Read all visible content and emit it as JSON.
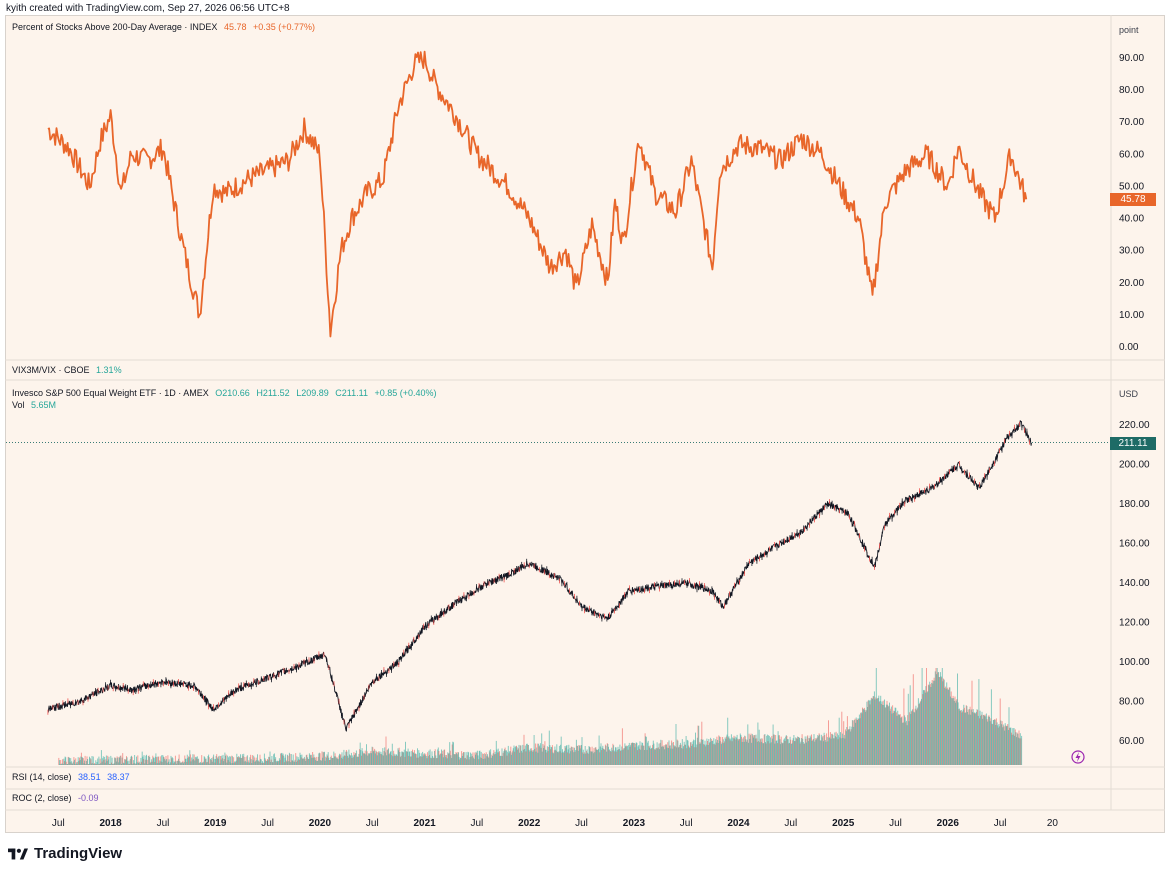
{
  "credit": "kyith created with TradingView.com, Sep 27, 2026 06:56 UTC+8",
  "footer": {
    "brand": "TradingView"
  },
  "colors": {
    "line_orange": "#e8662a",
    "price_bar": "#131722",
    "vol_up": "#26a69a",
    "vol_down": "#ef5350",
    "badge_green": "#1e6b66",
    "bg": "#fdf4ec"
  },
  "panes": {
    "breadth": {
      "title": "Percent of Stocks Above 200-Day Average · INDEX",
      "last": "45.78",
      "change": "+0.35 (+0.77%)",
      "unit": "point",
      "badge": "45.78",
      "ticks": [
        "90.00",
        "80.00",
        "70.00",
        "60.00",
        "50.00",
        "40.00",
        "30.00",
        "20.00",
        "10.00",
        "0.00"
      ]
    },
    "vix": {
      "title": "VIX3M/VIX · CBOE",
      "value": "1.31%"
    },
    "price": {
      "title": "Invesco S&P 500 Equal Weight ETF · 1D · AMEX",
      "open": "O210.66",
      "high": "H211.52",
      "low": "L209.89",
      "close": "C211.11",
      "change": "+0.85 (+0.40%)",
      "vol_label": "Vol",
      "vol_value": "5.65M",
      "unit": "USD",
      "badge": "211.11",
      "ticks": [
        "220.00",
        "200.00",
        "180.00",
        "160.00",
        "140.00",
        "120.00",
        "100.00",
        "80.00",
        "60.00"
      ]
    },
    "rsi": {
      "title": "RSI (14, close)",
      "v1": "38.51",
      "v2": "38.37"
    },
    "roc": {
      "title": "ROC (2, close)",
      "v1": "-0.09"
    }
  },
  "x_axis": [
    "Jul",
    "2018",
    "Jul",
    "2019",
    "Jul",
    "2020",
    "Jul",
    "2021",
    "Jul",
    "2022",
    "Jul",
    "2023",
    "Jul",
    "2024",
    "Jul",
    "2025",
    "Jul",
    "2026",
    "Jul",
    "20"
  ],
  "chart_data": [
    {
      "type": "line",
      "title": "Percent of Stocks Above 200-Day Average · INDEX",
      "ylim": [
        0,
        95
      ],
      "x": [
        2017.4,
        2017.6,
        2017.8,
        2017.9,
        2018.0,
        2018.1,
        2018.2,
        2018.35,
        2018.5,
        2018.7,
        2018.85,
        2018.98,
        2019.1,
        2019.3,
        2019.5,
        2019.7,
        2019.85,
        2020.0,
        2020.1,
        2020.2,
        2020.3,
        2020.45,
        2020.6,
        2020.75,
        2020.9,
        2021.0,
        2021.1,
        2021.3,
        2021.5,
        2021.65,
        2021.8,
        2022.0,
        2022.2,
        2022.35,
        2022.45,
        2022.6,
        2022.75,
        2022.82,
        2022.9,
        2023.0,
        2023.05,
        2023.2,
        2023.4,
        2023.55,
        2023.75,
        2023.82,
        2024.0,
        2024.2,
        2024.4,
        2024.6,
        2024.8,
        2025.0,
        2025.15,
        2025.28,
        2025.4,
        2025.6,
        2025.8,
        2026.0,
        2026.1,
        2026.3,
        2026.45,
        2026.6,
        2026.75
      ],
      "y": [
        68,
        62,
        50,
        64,
        72,
        48,
        60,
        58,
        62,
        30,
        10,
        50,
        48,
        52,
        55,
        58,
        68,
        60,
        5,
        30,
        40,
        48,
        52,
        75,
        88,
        90,
        82,
        72,
        60,
        55,
        50,
        40,
        25,
        30,
        18,
        38,
        20,
        45,
        32,
        55,
        65,
        48,
        42,
        58,
        25,
        55,
        63,
        62,
        58,
        65,
        60,
        48,
        40,
        15,
        45,
        55,
        60,
        50,
        62,
        48,
        40,
        60,
        46
      ],
      "series": [
        {
          "name": "Percent of Stocks Above 200-Day Average · INDEX"
        }
      ]
    },
    {
      "type": "line",
      "title": "Invesco S&P 500 Equal Weight ETF · 1D · AMEX",
      "ylim": [
        50,
        228
      ],
      "x": [
        2017.4,
        2017.7,
        2018.0,
        2018.2,
        2018.5,
        2018.8,
        2018.98,
        2019.2,
        2019.5,
        2019.8,
        2020.05,
        2020.25,
        2020.5,
        2020.75,
        2021.0,
        2021.3,
        2021.6,
        2021.8,
        2022.0,
        2022.3,
        2022.5,
        2022.75,
        2022.95,
        2023.2,
        2023.5,
        2023.75,
        2023.85,
        2024.1,
        2024.4,
        2024.6,
        2024.85,
        2025.05,
        2025.3,
        2025.4,
        2025.6,
        2025.85,
        2026.1,
        2026.3,
        2026.55,
        2026.7,
        2026.8
      ],
      "y": [
        76,
        80,
        88,
        86,
        90,
        88,
        76,
        86,
        92,
        98,
        104,
        66,
        90,
        100,
        118,
        130,
        140,
        144,
        150,
        142,
        128,
        122,
        136,
        138,
        140,
        136,
        128,
        150,
        160,
        166,
        180,
        175,
        148,
        170,
        182,
        188,
        200,
        188,
        212,
        221,
        211
      ],
      "series": [
        {
          "name": "Invesco S&P 500 Equal Weight ETF"
        }
      ]
    },
    {
      "type": "bar",
      "title": "Vol",
      "ylim": [
        0,
        100
      ],
      "x": [
        2017.5,
        2018.5,
        2019.5,
        2020.2,
        2020.5,
        2021.0,
        2021.5,
        2022.0,
        2022.5,
        2023.0,
        2023.5,
        2024.0,
        2024.5,
        2025.0,
        2025.3,
        2025.6,
        2025.9,
        2026.1,
        2026.4,
        2026.7
      ],
      "y": [
        4,
        6,
        7,
        10,
        14,
        12,
        10,
        18,
        16,
        20,
        22,
        28,
        26,
        30,
        72,
        45,
        96,
        60,
        48,
        30
      ],
      "series": [
        {
          "name": "Vol"
        }
      ]
    }
  ]
}
